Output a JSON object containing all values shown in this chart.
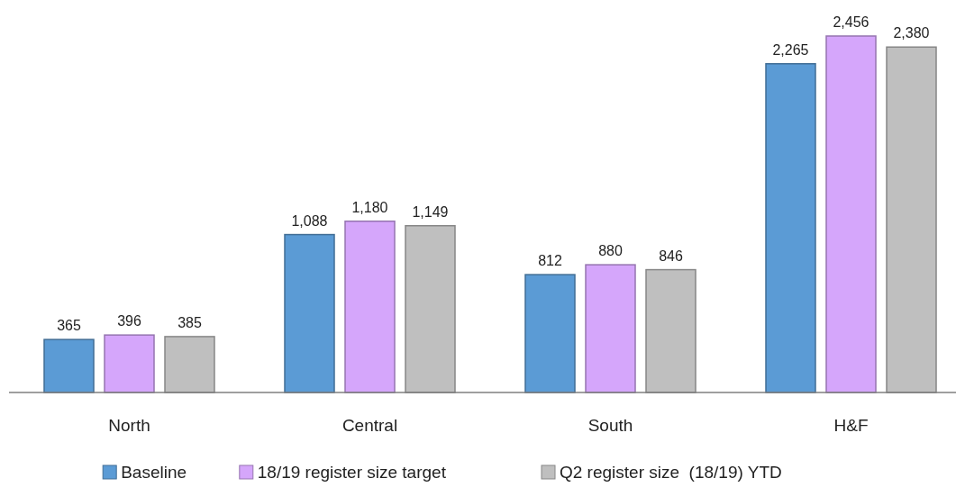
{
  "chart_data": {
    "type": "bar",
    "categories": [
      "North",
      "Central",
      "South",
      "H&F"
    ],
    "series": [
      {
        "name": "Baseline",
        "color": "#5b9bd5",
        "values": [
          365,
          1088,
          812,
          2265
        ],
        "value_labels": [
          "365",
          "1,088",
          "812",
          "2,265"
        ]
      },
      {
        "name": "18/19 register size target",
        "color": "#d5a6fb",
        "values": [
          396,
          1180,
          880,
          2456
        ],
        "value_labels": [
          "396",
          "1,180",
          "880",
          "2,456"
        ]
      },
      {
        "name": "Q2 register size  (18/19) YTD",
        "color": "#bfbfbf",
        "values": [
          385,
          1149,
          846,
          2380
        ],
        "value_labels": [
          "385",
          "1,149",
          "846",
          "2,380"
        ]
      }
    ],
    "legend": "bottom"
  }
}
